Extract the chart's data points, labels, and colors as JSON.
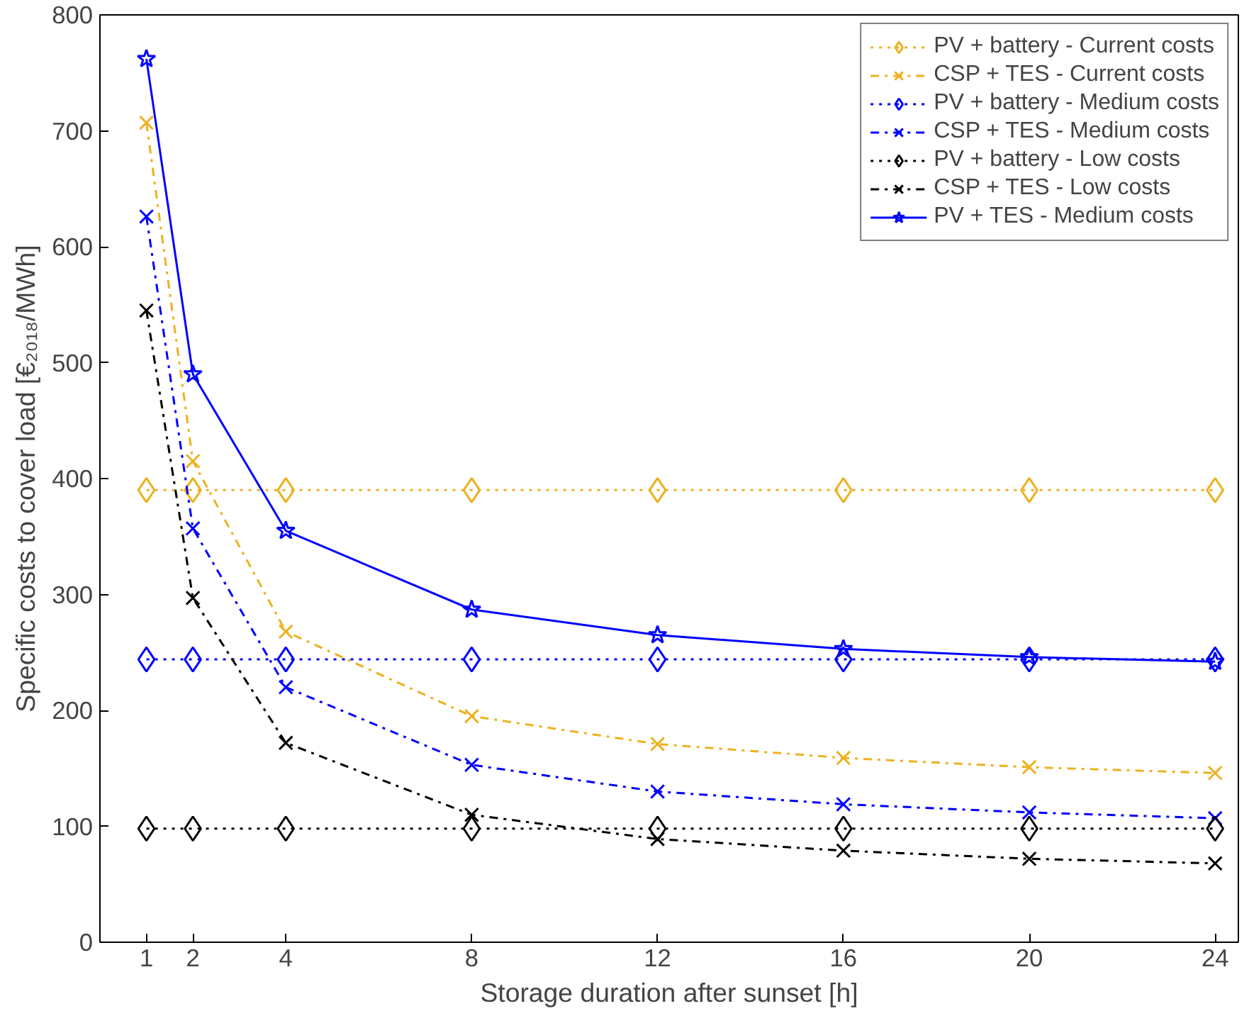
{
  "chart_data": {
    "type": "line",
    "xlabel": "Storage duration after sunset [h]",
    "ylabel": "Specific costs to cover load [€₂₀₁₈/MWh]",
    "x": [
      1,
      2,
      4,
      8,
      12,
      16,
      20,
      24
    ],
    "xlim": [
      0,
      24.5
    ],
    "xticks": [
      1,
      2,
      4,
      8,
      12,
      16,
      20,
      24
    ],
    "ylim": [
      0,
      800
    ],
    "yticks": [
      0,
      100,
      200,
      300,
      400,
      500,
      600,
      700,
      800
    ],
    "grid": false,
    "legend": "top right",
    "series": [
      {
        "name": "PV + battery - Current costs",
        "color": "#edb120",
        "marker": "diamond",
        "line_style": "dotted",
        "values": [
          390,
          390,
          390,
          390,
          390,
          390,
          390,
          390
        ]
      },
      {
        "name": "CSP + TES - Current costs",
        "color": "#edb120",
        "marker": "cross",
        "line_style": "dashdot",
        "values": [
          707,
          415,
          268,
          195,
          171,
          159,
          151,
          146
        ]
      },
      {
        "name": "PV + battery - Medium costs",
        "color": "#0000ff",
        "marker": "diamond",
        "line_style": "dotted",
        "values": [
          244,
          244,
          244,
          244,
          244,
          244,
          244,
          244
        ]
      },
      {
        "name": "CSP + TES - Medium costs",
        "color": "#0000ff",
        "marker": "cross",
        "line_style": "dashdot",
        "values": [
          626,
          357,
          220,
          153,
          130,
          119,
          112,
          107
        ]
      },
      {
        "name": "PV + battery - Low costs",
        "color": "#000000",
        "marker": "diamond",
        "line_style": "dotted",
        "values": [
          98,
          98,
          98,
          98,
          98,
          98,
          98,
          98
        ]
      },
      {
        "name": "CSP + TES - Low costs",
        "color": "#000000",
        "marker": "cross",
        "line_style": "dashdot",
        "values": [
          545,
          297,
          172,
          110,
          89,
          79,
          72,
          68
        ]
      },
      {
        "name": "PV + TES - Medium costs",
        "color": "#0000ff",
        "marker": "star",
        "line_style": "solid",
        "values": [
          762,
          490,
          355,
          287,
          265,
          253,
          246,
          242
        ]
      }
    ]
  }
}
